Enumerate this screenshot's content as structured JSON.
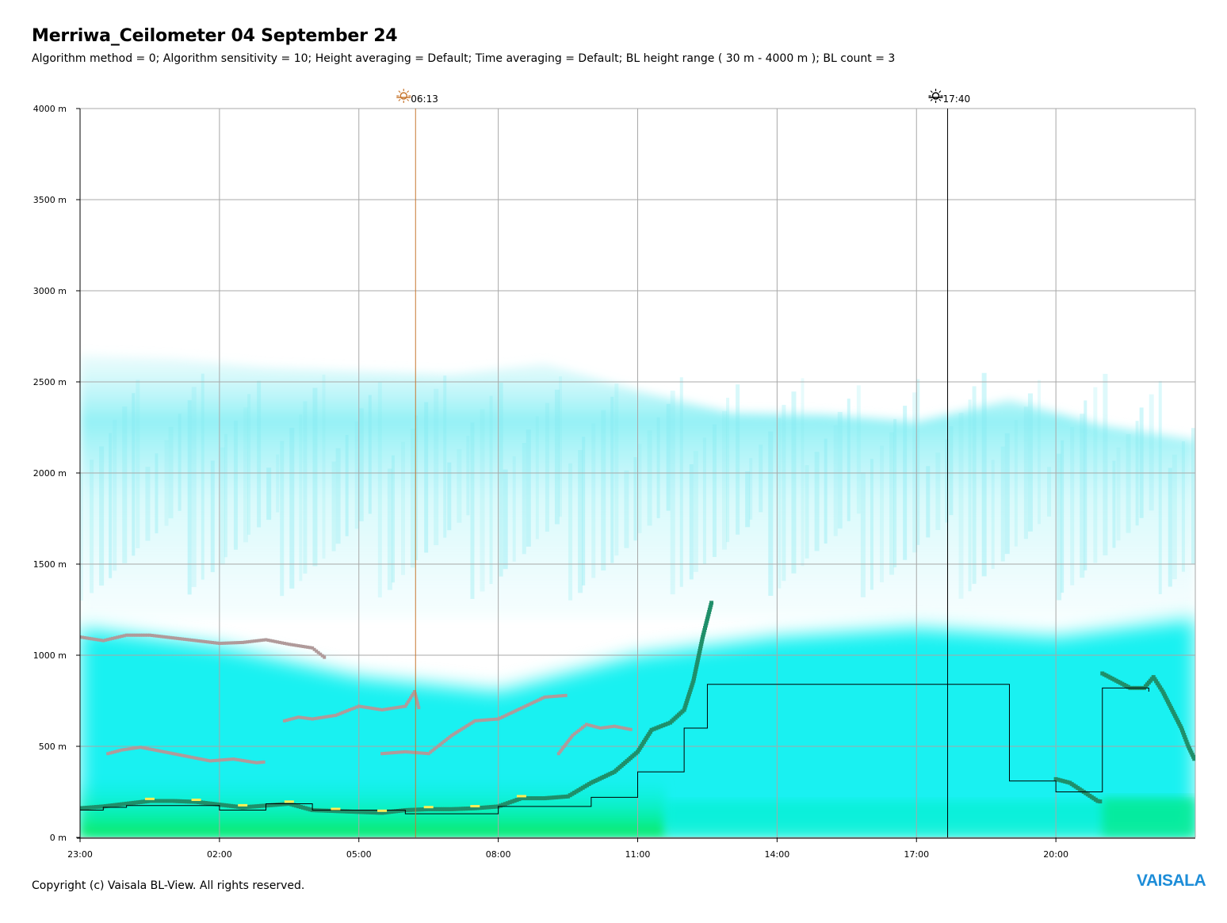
{
  "title": "Merriwa_Ceilometer 04 September 24",
  "subtitle": "Algorithm method = 0; Algorithm sensitivity = 10; Height averaging = Default; Time averaging = Default; BL height range ( 30 m - 4000 m ); BL count = 3",
  "footer": "Copyright (c) Vaisala BL-View. All rights reserved.",
  "logo": "VAISALA",
  "colors": {
    "sunrise_line": "#c87832",
    "sunset_line": "#000000",
    "grid": "#a8a8a8",
    "backscatter_light": "#9ef0f5",
    "backscatter_strong": "#00f0f0",
    "backscatter_surface": "#00e860",
    "bl_layer_1": "#1f8f6a",
    "bl_layer_2": "#b09a9a",
    "bl_highlight": "#ffee55",
    "step_line": "#000000"
  },
  "chart_data": {
    "type": "heatmap",
    "title": "Merriwa_Ceilometer 04 September 24",
    "xlabel": "",
    "ylabel": "",
    "x_unit": "hours (23:00 on 03 Sep to 23:00 on 04 Sep)",
    "xlim": [
      0,
      24
    ],
    "ylim": [
      0,
      4000
    ],
    "grid": true,
    "y_ticks": [
      {
        "value": 0,
        "label": "0 m"
      },
      {
        "value": 500,
        "label": "500 m"
      },
      {
        "value": 1000,
        "label": "1000 m"
      },
      {
        "value": 1500,
        "label": "1500 m"
      },
      {
        "value": 2000,
        "label": "2000 m"
      },
      {
        "value": 2500,
        "label": "2500 m"
      },
      {
        "value": 3000,
        "label": "3000 m"
      },
      {
        "value": 3500,
        "label": "3500 m"
      },
      {
        "value": 4000,
        "label": "4000 m"
      }
    ],
    "x_ticks": [
      {
        "value": 0,
        "label": "23:00"
      },
      {
        "value": 3,
        "label": "02:00"
      },
      {
        "value": 6,
        "label": "05:00"
      },
      {
        "value": 9,
        "label": "08:00"
      },
      {
        "value": 12,
        "label": "11:00"
      },
      {
        "value": 15,
        "label": "14:00"
      },
      {
        "value": 18,
        "label": "17:00"
      },
      {
        "value": 21,
        "label": "20:00"
      }
    ],
    "sun_markers": [
      {
        "type": "sunrise",
        "time": "06:13",
        "x": 7.22
      },
      {
        "type": "sunset",
        "time": "17:40",
        "x": 18.67
      }
    ],
    "aerosol_layer_top": [
      {
        "x": 0,
        "y": 2650
      },
      {
        "x": 2,
        "y": 2630
      },
      {
        "x": 4,
        "y": 2580
      },
      {
        "x": 6,
        "y": 2560
      },
      {
        "x": 8,
        "y": 2540
      },
      {
        "x": 10,
        "y": 2600
      },
      {
        "x": 12,
        "y": 2450
      },
      {
        "x": 14,
        "y": 2330
      },
      {
        "x": 16,
        "y": 2320
      },
      {
        "x": 18,
        "y": 2280
      },
      {
        "x": 20,
        "y": 2400
      },
      {
        "x": 22,
        "y": 2260
      },
      {
        "x": 24,
        "y": 2180
      }
    ],
    "strong_backscatter_top": [
      {
        "x": 0,
        "y": 1150
      },
      {
        "x": 3,
        "y": 1050
      },
      {
        "x": 6,
        "y": 880
      },
      {
        "x": 9,
        "y": 800
      },
      {
        "x": 12,
        "y": 1000
      },
      {
        "x": 15,
        "y": 1100
      },
      {
        "x": 18,
        "y": 1150
      },
      {
        "x": 21,
        "y": 1100
      },
      {
        "x": 24,
        "y": 1200
      }
    ],
    "series": [
      {
        "name": "",
        "role": "bl_layer_1",
        "points": [
          [
            0.0,
            160
          ],
          [
            0.5,
            170
          ],
          [
            1.0,
            185
          ],
          [
            1.5,
            200
          ],
          [
            2.0,
            200
          ],
          [
            2.5,
            195
          ],
          [
            3.0,
            180
          ],
          [
            3.5,
            165
          ],
          [
            4.0,
            175
          ],
          [
            4.5,
            185
          ],
          [
            5.0,
            150
          ],
          [
            5.5,
            145
          ],
          [
            6.0,
            140
          ],
          [
            6.5,
            135
          ],
          [
            7.0,
            150
          ],
          [
            7.5,
            155
          ],
          [
            8.0,
            155
          ],
          [
            8.5,
            160
          ],
          [
            9.0,
            170
          ],
          [
            9.5,
            215
          ],
          [
            10.0,
            215
          ],
          [
            10.5,
            225
          ],
          [
            11.0,
            300
          ],
          [
            11.5,
            360
          ],
          [
            12.0,
            470
          ],
          [
            12.3,
            590
          ],
          [
            12.7,
            630
          ],
          [
            13.0,
            700
          ],
          [
            13.2,
            860
          ],
          [
            13.4,
            1100
          ],
          [
            13.6,
            1300
          ]
        ]
      },
      {
        "name": "",
        "role": "bl_layer_1_evening",
        "points": [
          [
            21.0,
            320
          ],
          [
            21.3,
            300
          ],
          [
            21.6,
            250
          ],
          [
            21.9,
            200
          ],
          [
            22.0,
            195
          ]
        ]
      },
      {
        "name": "",
        "role": "bl_layer_1_night",
        "points": [
          [
            22.0,
            900
          ],
          [
            22.3,
            860
          ],
          [
            22.6,
            820
          ],
          [
            22.9,
            820
          ],
          [
            23.1,
            880
          ],
          [
            23.3,
            800
          ],
          [
            23.5,
            700
          ],
          [
            23.7,
            600
          ],
          [
            23.85,
            500
          ],
          [
            24.0,
            420
          ]
        ]
      },
      {
        "name": "",
        "role": "bl_layer_2",
        "points": [
          [
            0.0,
            1100
          ],
          [
            0.5,
            1080
          ],
          [
            1.0,
            1110
          ],
          [
            1.5,
            1110
          ],
          [
            2.0,
            1095
          ],
          [
            2.5,
            1080
          ],
          [
            3.0,
            1065
          ],
          [
            3.5,
            1070
          ],
          [
            4.0,
            1085
          ],
          [
            4.5,
            1060
          ],
          [
            5.0,
            1040
          ],
          [
            5.3,
            980
          ]
        ]
      },
      {
        "name": "",
        "role": "bl_layer_2_lower",
        "points": [
          [
            4.4,
            640
          ],
          [
            4.7,
            660
          ],
          [
            5.0,
            650
          ],
          [
            5.5,
            670
          ],
          [
            6.0,
            720
          ],
          [
            6.5,
            700
          ],
          [
            7.0,
            720
          ],
          [
            7.2,
            800
          ],
          [
            7.3,
            700
          ]
        ]
      },
      {
        "name": "",
        "role": "bl_layer_2_morning",
        "points": [
          [
            6.5,
            460
          ],
          [
            7.0,
            470
          ],
          [
            7.5,
            460
          ],
          [
            8.0,
            560
          ],
          [
            8.5,
            640
          ],
          [
            9.0,
            650
          ],
          [
            9.5,
            710
          ],
          [
            10.0,
            770
          ],
          [
            10.5,
            780
          ]
        ]
      },
      {
        "name": "",
        "role": "bl_layer_2_fragments",
        "points": [
          [
            0.6,
            460
          ],
          [
            0.9,
            480
          ],
          [
            1.3,
            495
          ],
          [
            2.8,
            420
          ],
          [
            3.3,
            430
          ],
          [
            3.8,
            410
          ],
          [
            4.0,
            415
          ]
        ]
      },
      {
        "name": "",
        "role": "bl_layer_2_late_morning",
        "points": [
          [
            10.3,
            460
          ],
          [
            10.6,
            560
          ],
          [
            10.9,
            620
          ],
          [
            11.2,
            600
          ],
          [
            11.5,
            610
          ],
          [
            11.9,
            590
          ]
        ]
      },
      {
        "name": "",
        "role": "bl_step",
        "points": [
          [
            0.0,
            150
          ],
          [
            0.5,
            165
          ],
          [
            1.0,
            175
          ],
          [
            3.0,
            150
          ],
          [
            4.0,
            185
          ],
          [
            5.0,
            150
          ],
          [
            7.0,
            130
          ],
          [
            9.0,
            170
          ],
          [
            11.0,
            220
          ],
          [
            12.0,
            360
          ],
          [
            13.0,
            600
          ],
          [
            13.5,
            840
          ],
          [
            14.0,
            840
          ],
          [
            20.0,
            310
          ],
          [
            21.0,
            250
          ],
          [
            22.0,
            820
          ],
          [
            23.0,
            800
          ]
        ]
      }
    ]
  }
}
